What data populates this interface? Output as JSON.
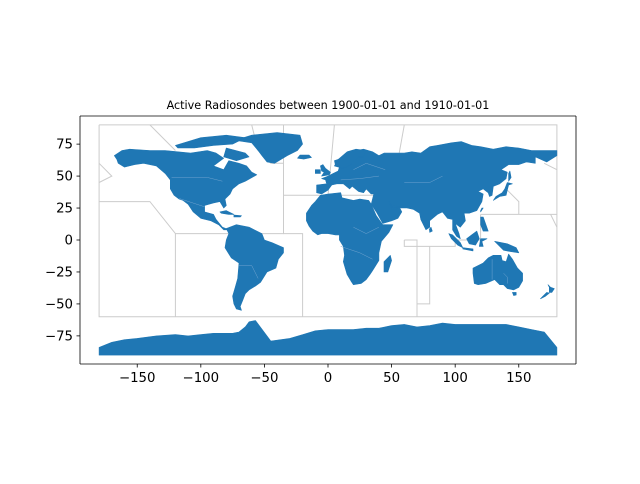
{
  "title": "Active Radiosondes between 1900-01-01 and 1910-01-01",
  "colors": {
    "land": "#1f77b4",
    "zone_lines": "#cccccc",
    "axis": "#000000",
    "background": "#ffffff"
  },
  "axes": {
    "xlim": [
      -195,
      195
    ],
    "ylim": [
      -97,
      97
    ],
    "x_ticks": [
      -150,
      -100,
      -50,
      0,
      50,
      100,
      150
    ],
    "y_ticks": [
      75,
      50,
      25,
      0,
      -25,
      -50,
      -75
    ],
    "x_tick_labels": [
      "−150",
      "−100",
      "−50",
      "0",
      "50",
      "100",
      "150"
    ],
    "y_tick_labels": [
      "75",
      "50",
      "25",
      "0",
      "−25",
      "−50",
      "−75"
    ]
  },
  "map": {
    "projection": "plate-carree (lon/lat)",
    "content": "world countries filled in one color with light gray reference zone boundaries; no radiosonde stations plotted"
  }
}
